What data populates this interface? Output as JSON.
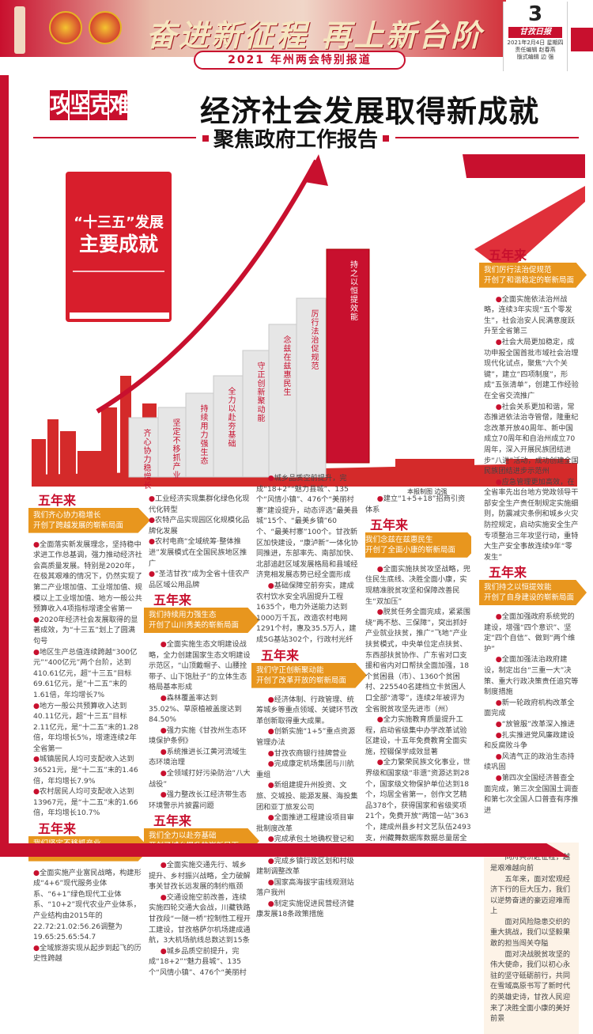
{
  "header": {
    "banner_title": "奋进新征程 再上新台阶",
    "special": "2021 年州两会特别报道",
    "page_number": "3",
    "paper_name": "甘孜日报",
    "date": "2021年2月4日 星期四",
    "editor": "责任编辑 赵春燕",
    "designer": "版式编辑 边 强"
  },
  "headline": {
    "kicker": [
      "攻",
      "坚",
      "克",
      "难"
    ],
    "title": "经济社会发展取得新成就",
    "subtitle": "聚焦政府工作报告"
  },
  "graphic": {
    "book_line1": "“十三五”发展",
    "book_line2": "主要成就",
    "steps": [
      "齐心协力稳增长",
      "坚定不移抓产业",
      "持续用力强生态",
      "全力以赴夯基础",
      "守正创新聚动能",
      "念兹在兹惠民生",
      "厉行法治促规范",
      "持之以恒提效能"
    ],
    "credit": "本报制图 边强",
    "colors": {
      "red": "#c8102e",
      "orange": "#e8961e"
    }
  },
  "sections": [
    {
      "head": "五年来",
      "tag1": "我们齐心协力稳增长",
      "tag2": "开创了跨越发展的崭新局面",
      "items": [
        "全面落实新发展理念，坚持稳中求进工作总基调，强力推动经济社会高质量发展。特别是2020年，在极其艰难的情况下，仍然实现了第二产业增加值、工业增加值、规模以上工业增加值、地方一般公共预算收入4项指标增速全省第一",
        "2020年经济社会发展取得的显著成效，为“十三五”划上了圆满句号",
        "地区生产总值连续跨越“300亿元”“400亿元”两个台阶，达到410.61亿元，超“十三五”目标69.61亿元，是“十二五”末的1.61倍，年均增长7%",
        "地方一般公共预算收入达到40.11亿元，超“十三五”目标2.11亿元，是“十二五”末的1.28倍，年均增长5%，增速连续2年全省第一",
        "城镇居民人均可支配收入达到36521元，是“十二五”末的1.46倍，年均增长7.9%",
        "农村居民人均可支配收入达到13967元，是“十二五”末的1.66倍，年均增长10.7%"
      ]
    },
    {
      "head": "五年来",
      "tag1": "我们坚定不移抓产业",
      "tag2": "开创了转型升级的崭新局面",
      "items": [
        "全面实施产业富民战略，构建形成“4+6”现代服务业体系、“6+1”绿色现代工业体系、“10+2”现代农业产业体系，产业结构由2015年的22.72:21.02:56.26调整为19.65:25.65:54.7",
        "全域旅游实现从起步到起飞的历史性跨越",
        "工业经济实现集群化绿色化现代化转型",
        "农特产品实现园区化规模化品牌化发展",
        "农村电商“全域统筹·整体推进”发展模式在全国民族地区推广",
        "“圣洁甘孜”成为全省十佳农产品区域公用品牌"
      ]
    },
    {
      "head": "五年来",
      "tag1": "我们持续用力强生态",
      "tag2": "开创了山川秀美的崭新局面",
      "items": [
        "全面实施生态文明建设战略，全力创建国家生态文明建设示范区，“山顶戴帽子、山腰拴带子、山下饱肚子”的立体生态格局基本形成",
        "森林覆盖率达到35.02%、草原植被盖度达到84.50%",
        "强力实施《甘孜州生态环境保护条例》",
        "系统推进长江黄河流域生态环境治理",
        "全领域打好污染防治“八大战役”",
        "强力整改长江经济带生态环境警示片披露问题"
      ]
    },
    {
      "head": "五年来",
      "tag1": "我们全力以赴夯基础",
      "tag2": "开创了城乡提升的崭新局面",
      "items": [
        "全面实施交通先行、城乡提升、乡村振兴战略，全力破解事关甘孜长远发展的制约瓶颈",
        "交通设施空前改善，连续实施四轮交通大会战，川藏铁路甘孜段“一隧一桥”控制性工程开工建设，甘孜格萨尔机场建成通航，3大机场航线总数达到15条",
        "城乡品质空前提升，完成“18+2”“魅力县城”、135个“风情小镇”、476个“美丽村寨”建设提升，动态评选“最美县城”15个、“最美乡镇”60个、“最美村寨”100个。甘孜新区加快建设，“康泸新”一体化协同推进，东部率先、南部加快、北部追赶区域发展格局和县域经济竞相发展态势已经全面形成",
        "基础保障空前夯实，建成农村饮水安全巩固提升工程1635个，电力外送能力达到1000万千瓦，改造农村电网1291个村，惠及35.5万人，建成5G基站302个，行政村光纤宽带和4G网络实现全覆盖。新（改）建公厕1320座，农村户厕126694户，开放“共享厕所”523座"
      ]
    },
    {
      "head": "五年来",
      "tag1": "我们守正创新聚动能",
      "tag2": "开创了改革开放的崭新局面",
      "items": [
        "经济体制、行政管理、统筹城乡等重点领域、关键环节改革创新取得重大成果。",
        "创新实施“1+5”重点资源管理办法",
        "甘孜农商银行挂牌营业",
        "完成康定机场集团与川航重组",
        "新组建提升州投资、文旅、交城投、能源发展、海投集团和亚丁旅发公司",
        "全面推进工程建设项目审批制度改革",
        "完成承包土地确权登记和国有林区主体改革",
        "完成乡镇行政区划和村级建制调整改革",
        "国家高海拔宇宙线观测站落户我州",
        "制定实施促进民营经济健康发展18条政策措施",
        "建立“1+5+18”招商引资体系"
      ]
    },
    {
      "head": "五年来",
      "tag1": "我们念兹在兹惠民生",
      "tag2": "开创了全面小康的崭新局面",
      "items": [
        "全面实施扶贫攻坚战略，兜住民生底线、决胜全面小康，实现精准脱贫攻坚和保障改善民生“双加压”",
        "脱贫任务全面完成，紧紧围绕“两不愁、三保障”，突出抓好产业就业扶贫，推广“飞地”产业扶贫模式，中央单位定点扶贫、东西部扶贫协作、广东省对口支援和省内对口帮扶全面加强，18个贫困县（市）、1360个贫困村、225540名建档立卡贫困人口全部“清零”，连续2年被评为全省脱贫攻坚先进市（州）",
        "全力实施教育质量提升工程，启动省级集中办学改革试验区建设，十五年免费教育全面实施，控辍保学成效显著",
        "全力繁荣民族文化事业，世界级和国家级“非遗”资源达到28个，国家级文物保护单位达到18个，均居全省第一，创作文艺精品378个，获得国家和省级奖项21个，免费开放“两馆一站”363个，建成州县乡村文艺队伍2493支，州藏舞数据库数据总量居全国涉藏地区第一，广播电视综合覆盖率分别达到98.13%、97.96%，成功创建省级文明城市4个",
        "全力实施卫生质量提升工程，组建医联体34个，华西甘孜医院挂牌运行，省藏医院落户我州并启动建设，县级医疗卫生机构全部达到二乙以上，建成标准化乡（镇）卫生院289个、村卫生室1360个，石渠县包虫病综合防治试点通过国家终期评估验收，艾滋病、结核病等重大传染病综合防控和生育秩序专项整治成效显著，成功创建国家和省级卫生县城（城市）13个、乡（镇）206个、村1235个，城乡居民健康水平显著提升，我州荣获省级“双拥模范城”"
      ]
    },
    {
      "head": "五年来",
      "tag1": "我们厉行法治促规范",
      "tag2": "开创了和谐稳定的崭新局面",
      "items": [
        "全面实施依法治州战略，连续3年实现“五个零发生”，社会治安人民满意度跃升至全省第三",
        "社会大局更加稳定，成功申报全国首批市域社会治理现代化试点，聚焦“六个关键”，建立“四项制度”，形成“五张清单”，创建工作经验在全省交流推广",
        "社会关系更加和谐，常态推进依法治寺管僧，隆重纪念改革开放40周年、新中国成立70周年和自治州成立70周年，深入开展民族团结进步“八进”活动，成功创建全国民族团结进步示范州",
        "应急管理更加高效，在全省率先出台地方党政领导干部安全生产责任制规定实施细则，防震减灾条例和城乡火灾防控规定，启动实施安全生产专项整治三年攻坚行动，重特大生产安全事故连续9年“零发生”"
      ]
    },
    {
      "head": "五年来",
      "tag1": "我们持之以恒提效能",
      "tag2": "开创了自身建设的崭新局面",
      "items": [
        "全面加强政府系统党的建设，增强“四个意识”、坚定“四个自信”、做到“两个维护”",
        "全面加强法治政府建设，制定出台“三重一大”决策、重大行政决策责任追究等制度措施",
        "新一轮政府机构改革全面完成",
        "“放管服”改革深入推进",
        "扎实推进党风廉政建设和反腐败斗争",
        "风清气正的政治生态持续巩固",
        "第四次全国经济普查全面完成，第三次全国国土调查和第七次全国人口普查有序推进"
      ]
    }
  ],
  "closing": [
    "同舟共济赴征程，越是艰难越向前",
    "五年来，面对宏观经济下行的巨大压力，我们以逆势奋进的豪迈迎难而上",
    "面对风险隐患交织的重大挑战，我们以坚毅果敢的担当闯关夺隘",
    "面对决战脱贫攻坚的伟大使命，我们以初心永驻的坚守砥砺前行，共同在雪域高原书写了新时代的英雄史诗，甘孜人民迎来了决胜全面小康的美好前景"
  ]
}
